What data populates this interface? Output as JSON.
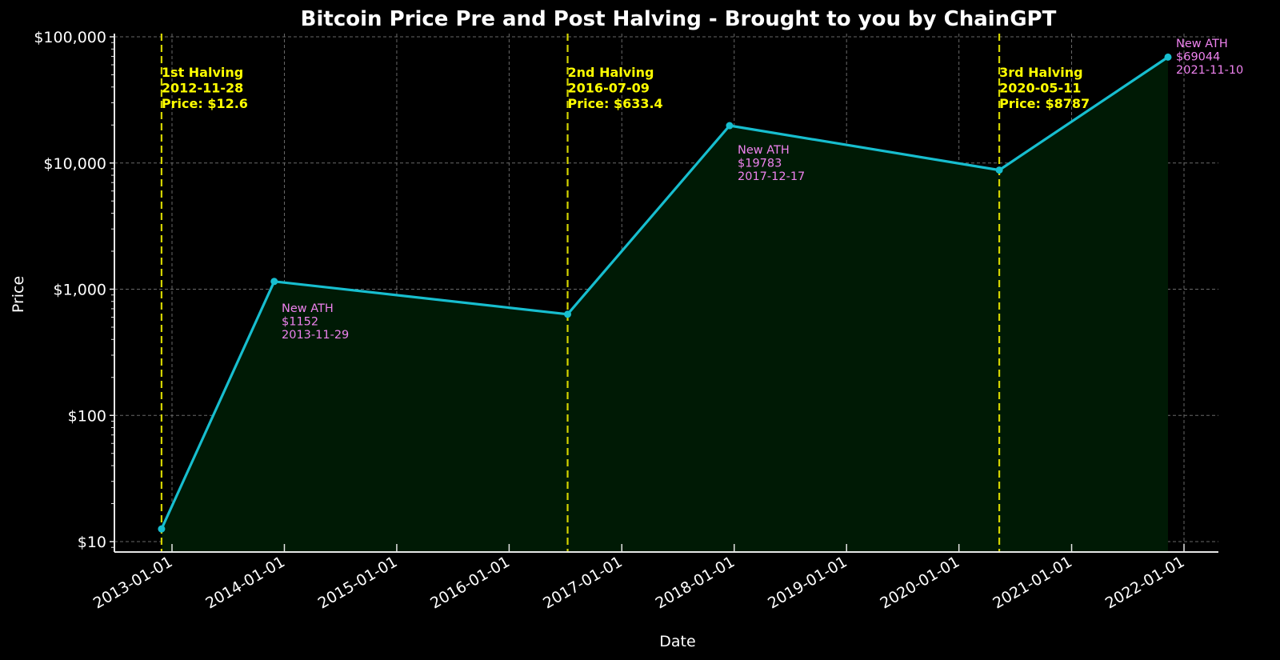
{
  "chart_data": {
    "type": "line",
    "title": "Bitcoin Price Pre and Post Halving - Brought to you by ChainGPT",
    "xlabel": "Date",
    "ylabel": "Price",
    "yscale": "log",
    "ylim": [
      8,
      110000
    ],
    "grid": true,
    "legend": null,
    "y_ticks": [
      {
        "value": 10,
        "label": "$10"
      },
      {
        "value": 100,
        "label": "$100"
      },
      {
        "value": 1000,
        "label": "$1,000"
      },
      {
        "value": 10000,
        "label": "$10,000"
      },
      {
        "value": 100000,
        "label": "$100,000"
      }
    ],
    "x_ticks": [
      "2013-01-01",
      "2014-01-01",
      "2015-01-01",
      "2016-01-01",
      "2017-01-01",
      "2018-01-01",
      "2019-01-01",
      "2020-01-01",
      "2021-01-01",
      "2022-01-01"
    ],
    "series": [
      {
        "name": "Price",
        "color": "#17becf",
        "fill": "#001a05",
        "points": [
          {
            "date": "2012-11-28",
            "value": 12.6
          },
          {
            "date": "2013-11-29",
            "value": 1152
          },
          {
            "date": "2016-07-09",
            "value": 633.4
          },
          {
            "date": "2017-12-17",
            "value": 19783
          },
          {
            "date": "2020-05-11",
            "value": 8787
          },
          {
            "date": "2021-11-10",
            "value": 69044
          }
        ]
      }
    ],
    "halvings": [
      {
        "label": "1st Halving",
        "date": "2012-11-28",
        "price_label": "Price: $12.6",
        "color": "#ffff00"
      },
      {
        "label": "2nd Halving",
        "date": "2016-07-09",
        "price_label": "Price: $633.4",
        "color": "#ffff00"
      },
      {
        "label": "3rd Halving",
        "date": "2020-05-11",
        "price_label": "Price: $8787",
        "color": "#ffff00"
      }
    ],
    "ath_annotations": [
      {
        "label": "New ATH",
        "price": "$1152",
        "date": "2013-11-29",
        "color": "#ee82ee"
      },
      {
        "label": "New ATH",
        "price": "$19783",
        "date": "2017-12-17",
        "color": "#ee82ee"
      },
      {
        "label": "New ATH",
        "price": "$69044",
        "date": "2021-11-10",
        "color": "#ee82ee"
      }
    ]
  }
}
